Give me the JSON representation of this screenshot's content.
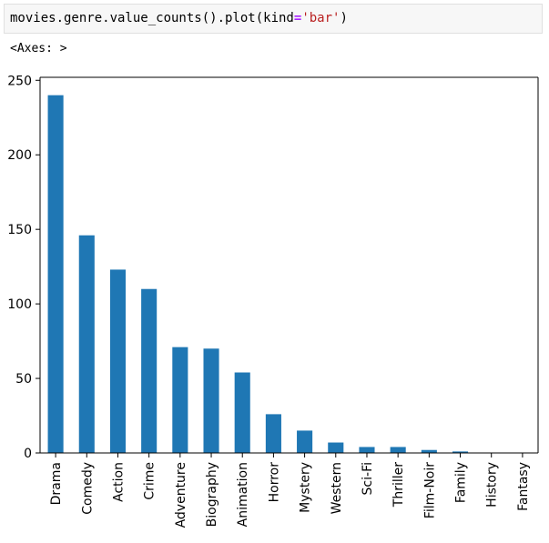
{
  "code_cell": {
    "prefix": "movies.genre.value_counts().plot(kind",
    "equals": "=",
    "string": "'bar'",
    "suffix": ")"
  },
  "output": {
    "text": "<Axes: >"
  },
  "colors": {
    "bar": "#1f77b4",
    "string_token": "#ba2121",
    "operator_token": "#aa22ff"
  },
  "chart_data": {
    "type": "bar",
    "title": "",
    "xlabel": "",
    "ylabel": "",
    "categories": [
      "Drama",
      "Comedy",
      "Action",
      "Crime",
      "Adventure",
      "Biography",
      "Animation",
      "Horror",
      "Mystery",
      "Western",
      "Sci-Fi",
      "Thriller",
      "Film-Noir",
      "Family",
      "History",
      "Fantasy"
    ],
    "values": [
      240,
      146,
      123,
      110,
      71,
      70,
      54,
      26,
      15,
      7,
      4,
      4,
      2,
      1,
      0,
      0
    ],
    "ylim": [
      0,
      252
    ],
    "yticks": [
      0,
      50,
      100,
      150,
      200,
      250
    ],
    "grid": false,
    "legend": "none"
  }
}
